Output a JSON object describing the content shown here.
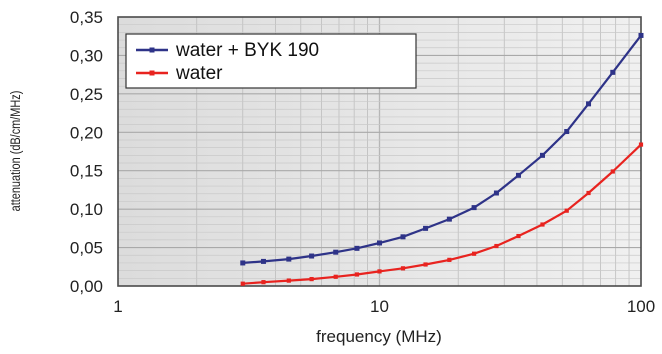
{
  "chart_data": {
    "type": "line",
    "title": "",
    "xlabel": "frequency (MHz)",
    "ylabel": "attenuation (dB/cm/MHz)",
    "x_scale": "log",
    "xlim": [
      1,
      100
    ],
    "ylim": [
      0,
      0.35
    ],
    "x_ticks": [
      1,
      10,
      100
    ],
    "x_tick_labels": [
      "1",
      "10",
      "100"
    ],
    "y_ticks": [
      0,
      0.05,
      0.1,
      0.15,
      0.2,
      0.25,
      0.3,
      0.35
    ],
    "y_tick_labels": [
      "0,00",
      "0,05",
      "0,10",
      "0,15",
      "0,20",
      "0,25",
      "0,30",
      "0,35"
    ],
    "grid": true,
    "legend_position": "top-left",
    "series": [
      {
        "name": "water + BYK 190",
        "color": "#2e3388",
        "x": [
          3.0,
          3.6,
          4.5,
          5.5,
          6.8,
          8.2,
          10,
          12.3,
          15,
          18.5,
          23,
          28,
          34,
          42,
          52,
          63,
          78,
          100
        ],
        "y": [
          0.03,
          0.032,
          0.035,
          0.039,
          0.044,
          0.049,
          0.056,
          0.064,
          0.075,
          0.087,
          0.102,
          0.121,
          0.144,
          0.17,
          0.201,
          0.237,
          0.278,
          0.326
        ]
      },
      {
        "name": "water",
        "color": "#e8231f",
        "x": [
          3.0,
          3.6,
          4.5,
          5.5,
          6.8,
          8.2,
          10,
          12.3,
          15,
          18.5,
          23,
          28,
          34,
          42,
          52,
          63,
          78,
          100
        ],
        "y": [
          0.003,
          0.005,
          0.007,
          0.009,
          0.012,
          0.015,
          0.019,
          0.023,
          0.028,
          0.034,
          0.042,
          0.052,
          0.065,
          0.08,
          0.098,
          0.121,
          0.149,
          0.184
        ]
      }
    ]
  }
}
